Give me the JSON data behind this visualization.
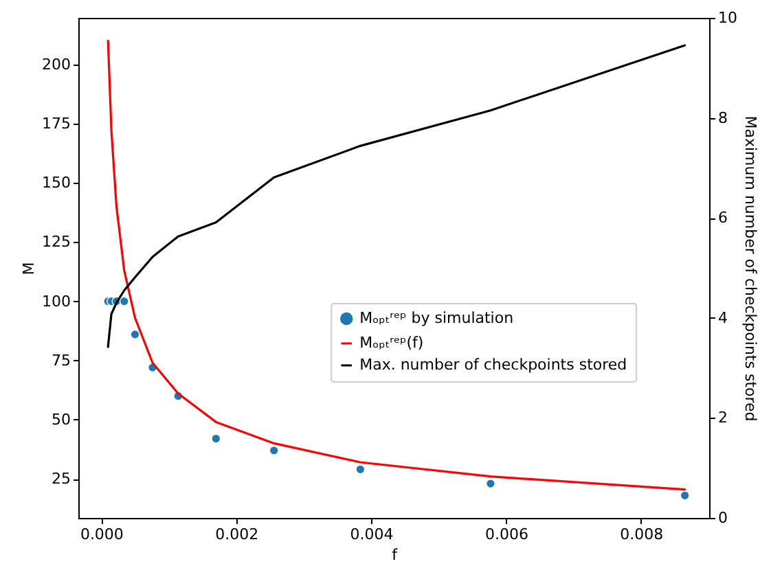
{
  "chart_data": {
    "type": "line",
    "xlabel": "f",
    "ylabel": "M",
    "y2label": "Maximum number of checkpoints stored",
    "x": [
      0.0001,
      0.00015,
      0.000225,
      0.00034,
      0.0005,
      0.00076,
      0.00114,
      0.0017,
      0.00256,
      0.00384,
      0.00577,
      0.00865
    ],
    "series": [
      {
        "name": "Mₒₚₜʳᵉᵖ by simulation",
        "type": "scatter",
        "marker": "circle",
        "color": "#1f77b4",
        "values": [
          100,
          100,
          100,
          100,
          86,
          72,
          60,
          42,
          37,
          29,
          23,
          18
        ]
      },
      {
        "name": "Mₒₚₜʳᵉᵖ(f)",
        "color": "#ff0000",
        "values": [
          210,
          172,
          140,
          113,
          93,
          74,
          61,
          49,
          40,
          32,
          26,
          20.5
        ]
      },
      {
        "name": "Max. number of checkpoints stored",
        "axis": "y2",
        "color": "#000000",
        "values": [
          3.42,
          4.08,
          4.3,
          4.55,
          4.81,
          5.22,
          5.63,
          5.91,
          6.81,
          7.44,
          8.15,
          9.45
        ]
      }
    ],
    "xlim": [
      -0.00034,
      0.00901
    ],
    "xticks": [
      {
        "value": 0,
        "label": "0.000"
      },
      {
        "value": 0.002,
        "label": "0.002"
      },
      {
        "value": 0.004,
        "label": "0.004"
      },
      {
        "value": 0.006,
        "label": "0.006"
      },
      {
        "value": 0.008,
        "label": "0.008"
      }
    ],
    "ylim": [
      8.5,
      219.7
    ],
    "yticks": [
      25,
      50,
      75,
      100,
      125,
      150,
      175,
      200
    ],
    "y2lim": [
      0,
      10
    ],
    "y2ticks": [
      0,
      2,
      4,
      6,
      8,
      10
    ],
    "grid": false,
    "legend": "center right",
    "line_style": "solid"
  }
}
